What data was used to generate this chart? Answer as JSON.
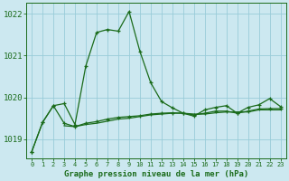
{
  "title": "Graphe pression niveau de la mer (hPa)",
  "bg_color": "#cce8f0",
  "grid_color": "#99ccd9",
  "line_color": "#1a6b1a",
  "xlim": [
    -0.5,
    23.5
  ],
  "ylim": [
    1018.55,
    1022.25
  ],
  "yticks": [
    1019,
    1020,
    1021,
    1022
  ],
  "xtick_labels": [
    "0",
    "1",
    "2",
    "3",
    "4",
    "5",
    "6",
    "7",
    "8",
    "9",
    "10",
    "11",
    "12",
    "13",
    "14",
    "15",
    "16",
    "17",
    "18",
    "19",
    "20",
    "21",
    "22",
    "23"
  ],
  "series1_x": [
    0,
    1,
    2,
    3,
    4,
    5,
    6,
    7,
    8,
    9,
    10,
    11,
    12,
    13,
    14,
    15,
    16,
    17,
    18,
    19,
    20,
    21,
    22,
    23
  ],
  "series1_y": [
    1018.7,
    1019.4,
    1019.8,
    1019.85,
    1019.35,
    1020.75,
    1021.55,
    1021.62,
    1021.58,
    1022.05,
    1021.1,
    1020.35,
    1019.9,
    1019.75,
    1019.62,
    1019.55,
    1019.7,
    1019.76,
    1019.8,
    1019.62,
    1019.76,
    1019.82,
    1019.97,
    1019.78
  ],
  "series2_x": [
    0,
    1,
    2,
    3,
    4,
    5,
    6,
    7,
    8,
    9,
    10,
    11,
    12,
    13,
    14,
    15,
    16,
    17,
    18,
    19,
    20,
    21,
    22,
    23
  ],
  "series2_y": [
    1018.7,
    1019.4,
    1019.8,
    1019.38,
    1019.3,
    1019.38,
    1019.42,
    1019.48,
    1019.52,
    1019.54,
    1019.56,
    1019.6,
    1019.62,
    1019.63,
    1019.62,
    1019.58,
    1019.62,
    1019.67,
    1019.67,
    1019.62,
    1019.67,
    1019.72,
    1019.73,
    1019.73
  ],
  "series3_x": [
    3,
    4,
    5,
    6,
    7,
    8,
    9,
    10,
    11,
    12,
    13,
    14,
    15,
    16,
    17,
    18,
    19,
    20,
    21,
    22,
    23
  ],
  "series3_y": [
    1019.32,
    1019.3,
    1019.35,
    1019.38,
    1019.43,
    1019.48,
    1019.5,
    1019.54,
    1019.58,
    1019.6,
    1019.62,
    1019.62,
    1019.6,
    1019.6,
    1019.63,
    1019.65,
    1019.65,
    1019.65,
    1019.7,
    1019.7,
    1019.7
  ]
}
